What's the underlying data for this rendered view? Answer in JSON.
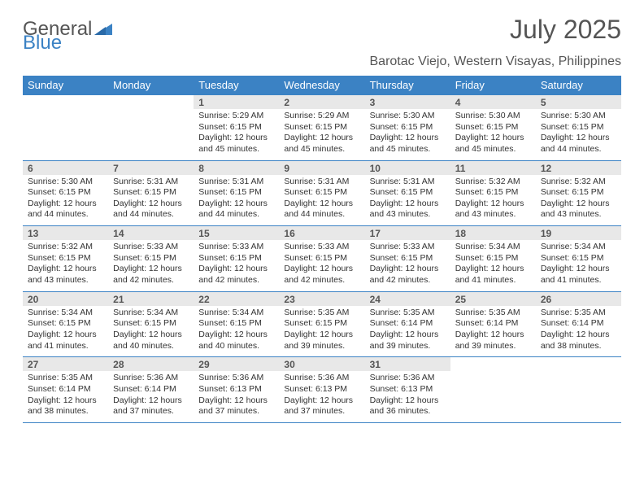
{
  "logo": {
    "text1": "General",
    "text2": "Blue"
  },
  "title": "July 2025",
  "location": "Barotac Viejo, Western Visayas, Philippines",
  "colors": {
    "primary": "#3b82c4",
    "header_bg": "#3b82c4",
    "header_text": "#ffffff",
    "date_bg": "#e8e8e8",
    "text": "#333333",
    "muted": "#555555",
    "bg": "#ffffff"
  },
  "dayNames": [
    "Sunday",
    "Monday",
    "Tuesday",
    "Wednesday",
    "Thursday",
    "Friday",
    "Saturday"
  ],
  "weeks": [
    [
      null,
      null,
      {
        "date": "1",
        "sunrise": "5:29 AM",
        "sunset": "6:15 PM",
        "daylight": "12 hours and 45 minutes."
      },
      {
        "date": "2",
        "sunrise": "5:29 AM",
        "sunset": "6:15 PM",
        "daylight": "12 hours and 45 minutes."
      },
      {
        "date": "3",
        "sunrise": "5:30 AM",
        "sunset": "6:15 PM",
        "daylight": "12 hours and 45 minutes."
      },
      {
        "date": "4",
        "sunrise": "5:30 AM",
        "sunset": "6:15 PM",
        "daylight": "12 hours and 45 minutes."
      },
      {
        "date": "5",
        "sunrise": "5:30 AM",
        "sunset": "6:15 PM",
        "daylight": "12 hours and 44 minutes."
      }
    ],
    [
      {
        "date": "6",
        "sunrise": "5:30 AM",
        "sunset": "6:15 PM",
        "daylight": "12 hours and 44 minutes."
      },
      {
        "date": "7",
        "sunrise": "5:31 AM",
        "sunset": "6:15 PM",
        "daylight": "12 hours and 44 minutes."
      },
      {
        "date": "8",
        "sunrise": "5:31 AM",
        "sunset": "6:15 PM",
        "daylight": "12 hours and 44 minutes."
      },
      {
        "date": "9",
        "sunrise": "5:31 AM",
        "sunset": "6:15 PM",
        "daylight": "12 hours and 44 minutes."
      },
      {
        "date": "10",
        "sunrise": "5:31 AM",
        "sunset": "6:15 PM",
        "daylight": "12 hours and 43 minutes."
      },
      {
        "date": "11",
        "sunrise": "5:32 AM",
        "sunset": "6:15 PM",
        "daylight": "12 hours and 43 minutes."
      },
      {
        "date": "12",
        "sunrise": "5:32 AM",
        "sunset": "6:15 PM",
        "daylight": "12 hours and 43 minutes."
      }
    ],
    [
      {
        "date": "13",
        "sunrise": "5:32 AM",
        "sunset": "6:15 PM",
        "daylight": "12 hours and 43 minutes."
      },
      {
        "date": "14",
        "sunrise": "5:33 AM",
        "sunset": "6:15 PM",
        "daylight": "12 hours and 42 minutes."
      },
      {
        "date": "15",
        "sunrise": "5:33 AM",
        "sunset": "6:15 PM",
        "daylight": "12 hours and 42 minutes."
      },
      {
        "date": "16",
        "sunrise": "5:33 AM",
        "sunset": "6:15 PM",
        "daylight": "12 hours and 42 minutes."
      },
      {
        "date": "17",
        "sunrise": "5:33 AM",
        "sunset": "6:15 PM",
        "daylight": "12 hours and 42 minutes."
      },
      {
        "date": "18",
        "sunrise": "5:34 AM",
        "sunset": "6:15 PM",
        "daylight": "12 hours and 41 minutes."
      },
      {
        "date": "19",
        "sunrise": "5:34 AM",
        "sunset": "6:15 PM",
        "daylight": "12 hours and 41 minutes."
      }
    ],
    [
      {
        "date": "20",
        "sunrise": "5:34 AM",
        "sunset": "6:15 PM",
        "daylight": "12 hours and 41 minutes."
      },
      {
        "date": "21",
        "sunrise": "5:34 AM",
        "sunset": "6:15 PM",
        "daylight": "12 hours and 40 minutes."
      },
      {
        "date": "22",
        "sunrise": "5:34 AM",
        "sunset": "6:15 PM",
        "daylight": "12 hours and 40 minutes."
      },
      {
        "date": "23",
        "sunrise": "5:35 AM",
        "sunset": "6:15 PM",
        "daylight": "12 hours and 39 minutes."
      },
      {
        "date": "24",
        "sunrise": "5:35 AM",
        "sunset": "6:14 PM",
        "daylight": "12 hours and 39 minutes."
      },
      {
        "date": "25",
        "sunrise": "5:35 AM",
        "sunset": "6:14 PM",
        "daylight": "12 hours and 39 minutes."
      },
      {
        "date": "26",
        "sunrise": "5:35 AM",
        "sunset": "6:14 PM",
        "daylight": "12 hours and 38 minutes."
      }
    ],
    [
      {
        "date": "27",
        "sunrise": "5:35 AM",
        "sunset": "6:14 PM",
        "daylight": "12 hours and 38 minutes."
      },
      {
        "date": "28",
        "sunrise": "5:36 AM",
        "sunset": "6:14 PM",
        "daylight": "12 hours and 37 minutes."
      },
      {
        "date": "29",
        "sunrise": "5:36 AM",
        "sunset": "6:13 PM",
        "daylight": "12 hours and 37 minutes."
      },
      {
        "date": "30",
        "sunrise": "5:36 AM",
        "sunset": "6:13 PM",
        "daylight": "12 hours and 37 minutes."
      },
      {
        "date": "31",
        "sunrise": "5:36 AM",
        "sunset": "6:13 PM",
        "daylight": "12 hours and 36 minutes."
      },
      null,
      null
    ]
  ]
}
